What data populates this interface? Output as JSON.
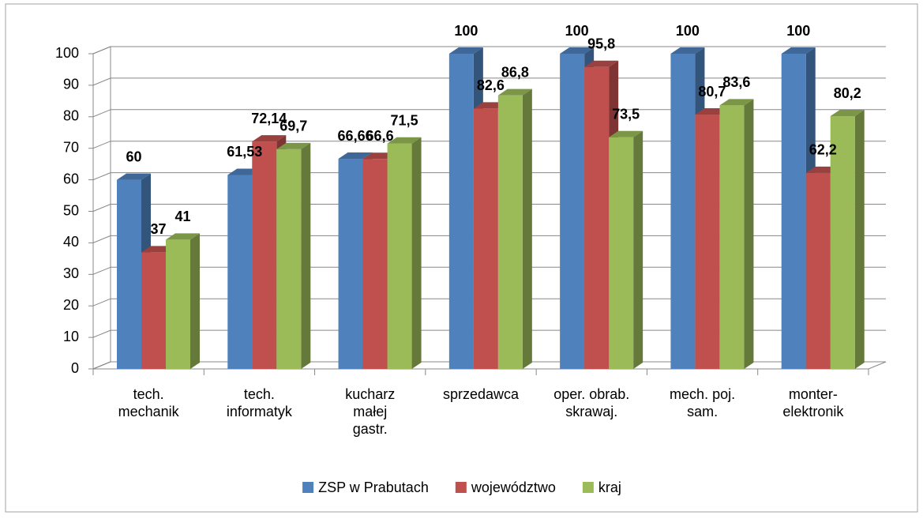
{
  "chart_data": {
    "type": "bar3d",
    "categories": [
      "tech.\nmechanik",
      "tech.\ninformatyk",
      "kucharz\nmałej\ngastr.",
      "sprzedawca",
      "oper. obrab.\nskrawaj.",
      "mech. poj.\nsam.",
      "monter-\nelektronik"
    ],
    "series": [
      {
        "name": "ZSP w Prabutach",
        "color": "#4f81bd",
        "values": [
          60,
          61.53,
          66.66,
          100,
          100,
          100,
          100
        ],
        "value_labels": [
          "60",
          "61,53",
          "66,66",
          "100",
          "100",
          "100",
          "100"
        ]
      },
      {
        "name": "województwo",
        "color": "#c0504d",
        "values": [
          37,
          72.14,
          66.6,
          82.6,
          95.8,
          80.7,
          62.2
        ],
        "value_labels": [
          "37",
          "72,14",
          "66,6",
          "82,6",
          "95,8",
          "80,7",
          "62,2"
        ]
      },
      {
        "name": "kraj",
        "color": "#9bbb59",
        "values": [
          41,
          69.7,
          71.5,
          86.8,
          73.5,
          83.6,
          80.2
        ],
        "value_labels": [
          "41",
          "69,7",
          "71,5",
          "86,8",
          "73,5",
          "83,6",
          "80,2"
        ]
      }
    ],
    "ylim": [
      0,
      100
    ],
    "yticks": [
      0,
      10,
      20,
      30,
      40,
      50,
      60,
      70,
      80,
      90,
      100
    ],
    "grid": true,
    "legend": "bottom"
  }
}
